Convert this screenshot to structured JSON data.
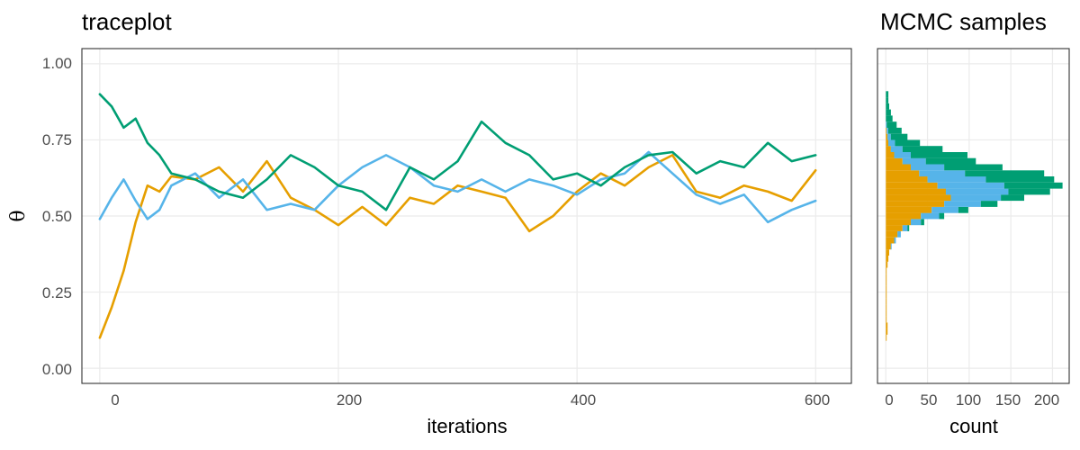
{
  "colors": {
    "chain1": "#E69F00",
    "chain2": "#56B4E9",
    "chain3": "#009E73",
    "grid": "#ebebeb",
    "frame": "#333333"
  },
  "chart_data": [
    {
      "type": "line",
      "title": "traceplot",
      "xlabel": "iterations",
      "ylabel": "θ",
      "xlim": [
        -15,
        630
      ],
      "ylim": [
        -0.05,
        1.05
      ],
      "x_ticks": [
        "0",
        "200",
        "400",
        "600"
      ],
      "y_ticks": [
        "0.00",
        "0.25",
        "0.50",
        "0.75",
        "1.00"
      ],
      "grid": true,
      "legend": "none",
      "series": [
        {
          "color": "#E69F00",
          "x": [
            0,
            10,
            20,
            30,
            40,
            50,
            60,
            80,
            100,
            120,
            140,
            160,
            180,
            200,
            220,
            240,
            260,
            280,
            300,
            320,
            340,
            360,
            380,
            400,
            420,
            440,
            460,
            480,
            500,
            520,
            540,
            560,
            580,
            600
          ],
          "y": [
            0.1,
            0.2,
            0.32,
            0.48,
            0.6,
            0.58,
            0.63,
            0.62,
            0.66,
            0.58,
            0.68,
            0.56,
            0.52,
            0.47,
            0.53,
            0.47,
            0.56,
            0.54,
            0.6,
            0.58,
            0.56,
            0.45,
            0.5,
            0.58,
            0.64,
            0.6,
            0.66,
            0.7,
            0.58,
            0.56,
            0.6,
            0.58,
            0.55,
            0.65
          ]
        },
        {
          "color": "#56B4E9",
          "x": [
            0,
            10,
            20,
            30,
            40,
            50,
            60,
            80,
            100,
            120,
            140,
            160,
            180,
            200,
            220,
            240,
            260,
            280,
            300,
            320,
            340,
            360,
            380,
            400,
            420,
            440,
            460,
            480,
            500,
            520,
            540,
            560,
            580,
            600
          ],
          "y": [
            0.49,
            0.56,
            0.62,
            0.55,
            0.49,
            0.52,
            0.6,
            0.64,
            0.56,
            0.62,
            0.52,
            0.54,
            0.52,
            0.6,
            0.66,
            0.7,
            0.66,
            0.6,
            0.58,
            0.62,
            0.58,
            0.62,
            0.6,
            0.57,
            0.62,
            0.64,
            0.71,
            0.64,
            0.57,
            0.54,
            0.57,
            0.48,
            0.52,
            0.55
          ]
        },
        {
          "color": "#009E73",
          "x": [
            0,
            10,
            20,
            30,
            40,
            50,
            60,
            80,
            100,
            120,
            140,
            160,
            180,
            200,
            220,
            240,
            260,
            280,
            300,
            320,
            340,
            360,
            380,
            400,
            420,
            440,
            460,
            480,
            500,
            520,
            540,
            560,
            580,
            600
          ],
          "y": [
            0.9,
            0.86,
            0.79,
            0.82,
            0.74,
            0.7,
            0.64,
            0.62,
            0.58,
            0.56,
            0.62,
            0.7,
            0.66,
            0.6,
            0.58,
            0.52,
            0.66,
            0.62,
            0.68,
            0.81,
            0.74,
            0.7,
            0.62,
            0.64,
            0.6,
            0.66,
            0.7,
            0.71,
            0.64,
            0.68,
            0.66,
            0.74,
            0.68,
            0.7
          ]
        }
      ]
    },
    {
      "type": "bar",
      "orientation": "horizontal",
      "stacked": true,
      "title": "MCMC samples",
      "xlabel": "count",
      "ylabel": "",
      "xlim": [
        -10,
        220
      ],
      "ylim": [
        -0.05,
        1.05
      ],
      "x_ticks": [
        "0",
        "50",
        "100",
        "150",
        "200"
      ],
      "grid": true,
      "bin_width": 0.02,
      "bins_center": [
        0.1,
        0.12,
        0.14,
        0.16,
        0.18,
        0.2,
        0.22,
        0.24,
        0.26,
        0.28,
        0.3,
        0.32,
        0.34,
        0.36,
        0.38,
        0.4,
        0.42,
        0.44,
        0.46,
        0.48,
        0.5,
        0.52,
        0.54,
        0.56,
        0.58,
        0.6,
        0.62,
        0.64,
        0.66,
        0.68,
        0.7,
        0.72,
        0.74,
        0.76,
        0.78,
        0.8,
        0.82,
        0.84,
        0.86,
        0.88,
        0.9
      ],
      "series": [
        {
          "color": "#E69F00",
          "values": [
            1,
            2,
            2,
            1,
            1,
            1,
            1,
            1,
            1,
            1,
            1,
            1,
            2,
            3,
            4,
            6,
            10,
            14,
            20,
            30,
            42,
            55,
            70,
            78,
            72,
            62,
            50,
            40,
            30,
            20,
            10,
            6,
            3,
            2,
            1,
            0,
            0,
            0,
            0,
            0,
            0
          ]
        },
        {
          "color": "#56B4E9",
          "values": [
            0,
            0,
            0,
            0,
            0,
            0,
            0,
            0,
            0,
            0,
            0,
            0,
            0,
            0,
            0,
            1,
            2,
            4,
            6,
            12,
            22,
            32,
            44,
            60,
            75,
            80,
            70,
            55,
            40,
            28,
            20,
            14,
            8,
            4,
            2,
            1,
            0,
            0,
            0,
            0,
            0
          ]
        },
        {
          "color": "#009E73",
          "values": [
            0,
            0,
            0,
            0,
            0,
            0,
            0,
            0,
            0,
            0,
            0,
            0,
            0,
            0,
            0,
            0,
            0,
            0,
            2,
            4,
            6,
            12,
            20,
            28,
            50,
            70,
            82,
            95,
            70,
            60,
            68,
            48,
            30,
            20,
            16,
            12,
            8,
            6,
            4,
            3,
            3
          ]
        }
      ]
    }
  ]
}
